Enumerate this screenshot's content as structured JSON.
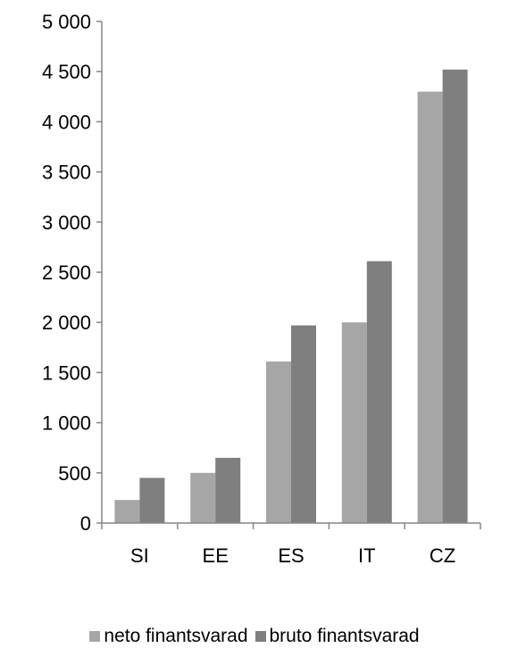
{
  "chart_data": {
    "type": "bar",
    "categories": [
      "SI",
      "EE",
      "ES",
      "IT",
      "CZ"
    ],
    "series": [
      {
        "name": "neto finantsvarad",
        "values": [
          230,
          500,
          1610,
          2000,
          4300
        ],
        "color": "#a6a6a6"
      },
      {
        "name": "bruto finantsvarad",
        "values": [
          450,
          650,
          1970,
          2610,
          4520
        ],
        "color": "#7f7f7f"
      }
    ],
    "yticks": [
      "0",
      "500",
      "1 000",
      "1 500",
      "2 000",
      "2 500",
      "3 000",
      "3 500",
      "4 000",
      "4 500",
      "5 000"
    ],
    "ylim": [
      0,
      5000
    ],
    "grid": false,
    "legend_position": "bottom"
  }
}
